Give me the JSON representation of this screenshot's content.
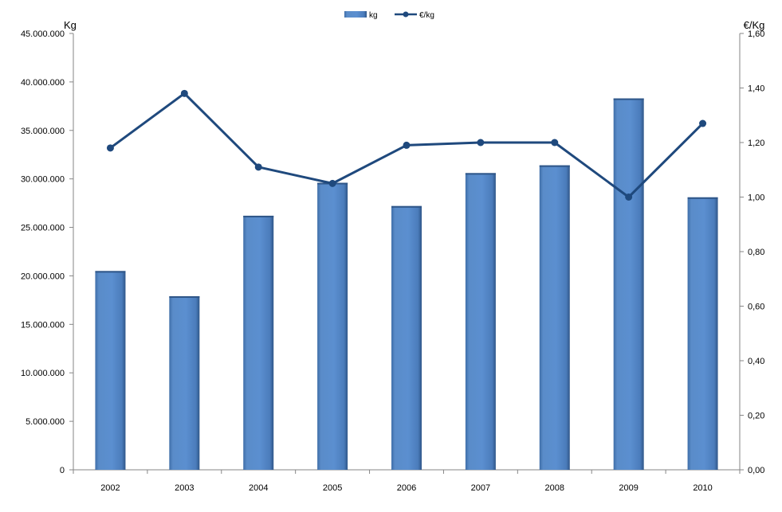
{
  "chart_data": {
    "type": "bar",
    "categories": [
      "2002",
      "2003",
      "2004",
      "2005",
      "2006",
      "2007",
      "2008",
      "2009",
      "2010"
    ],
    "series": [
      {
        "name": "kg",
        "type": "bar",
        "axis": "left",
        "values": [
          20500000,
          17900000,
          26200000,
          29600000,
          27200000,
          30600000,
          31400000,
          38300000,
          28100000
        ],
        "color": "#4f81bd"
      },
      {
        "name": "€/kg",
        "type": "line",
        "axis": "right",
        "values": [
          1.18,
          1.38,
          1.11,
          1.05,
          1.19,
          1.2,
          1.2,
          1.0,
          1.27
        ],
        "color": "#1f497d"
      }
    ],
    "ylabel": "Kg",
    "y2label": "€/Kg",
    "ylim": [
      0,
      45000000
    ],
    "y2lim": [
      0,
      1.6
    ],
    "yticks": [
      "0",
      "5.000.000",
      "10.000.000",
      "15.000.000",
      "20.000.000",
      "25.000.000",
      "30.000.000",
      "35.000.000",
      "40.000.000",
      "45.000.000"
    ],
    "y2ticks": [
      "0,00",
      "0,20",
      "0,40",
      "0,60",
      "0,80",
      "1,00",
      "1,20",
      "1,40",
      "1,60"
    ],
    "grid": false,
    "legend": "top-center"
  }
}
